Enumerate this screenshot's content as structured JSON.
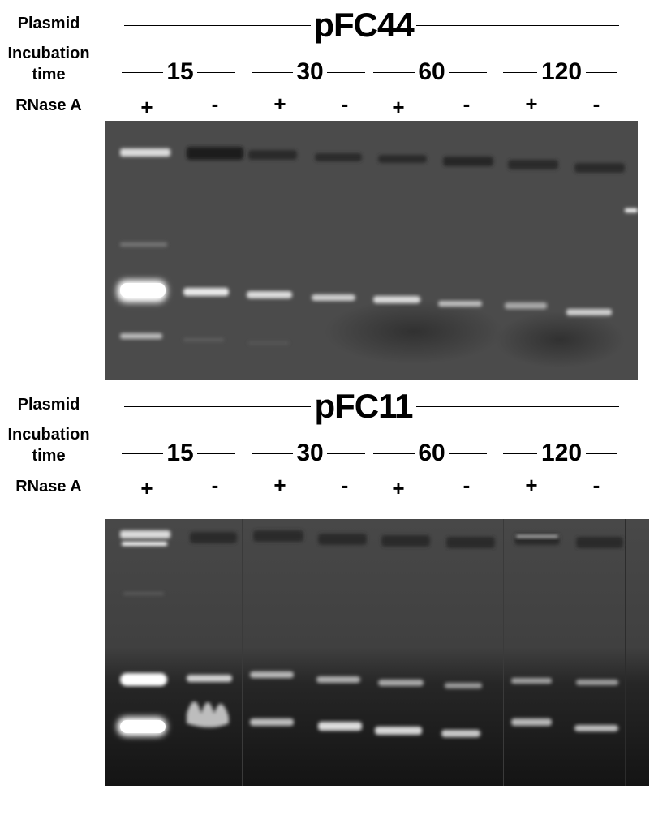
{
  "labels": {
    "plasmid": "Plasmid",
    "incubation_line1": "Incubation",
    "incubation_line2": "time",
    "rnase": "RNase A"
  },
  "panels": [
    {
      "plasmid_name": "pFC44",
      "times": [
        "15",
        "30",
        "60",
        "120"
      ],
      "rnase": [
        "+",
        "-",
        "+",
        "-",
        "+",
        "-",
        "+",
        "-"
      ]
    },
    {
      "plasmid_name": "pFC11",
      "times": [
        "15",
        "30",
        "60",
        "120"
      ],
      "rnase": [
        "+",
        "-",
        "+",
        "-",
        "+",
        "-",
        "+",
        "-"
      ]
    }
  ],
  "colors": {
    "gel_background": "#4a4a4a",
    "gel_dark": "#1c1c1c",
    "band": "#ffffff"
  }
}
